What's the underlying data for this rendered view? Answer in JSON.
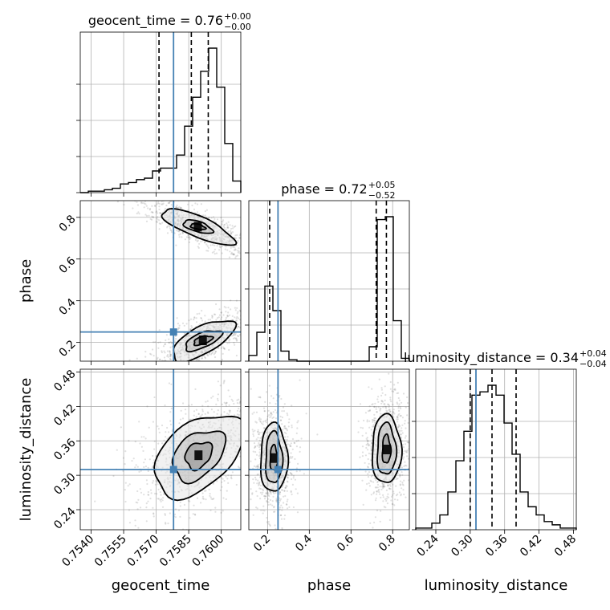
{
  "chart_data": {
    "type": "corner",
    "parameters": [
      "geocent_time",
      "phase",
      "luminosity_distance"
    ],
    "truth_color": "#4682b4",
    "truths": {
      "geocent_time": 0.7578,
      "phase": 0.25,
      "luminosity_distance": 0.31
    },
    "axes": {
      "geocent_time": {
        "range": [
          0.7535,
          0.7609
        ],
        "ticks": [
          "0.7540",
          "0.7555",
          "0.7570",
          "0.7585",
          "0.7600"
        ]
      },
      "phase": {
        "range": [
          0.11,
          0.88
        ],
        "ticks": [
          "0.2",
          "0.4",
          "0.6",
          "0.8"
        ]
      },
      "luminosity_distance": {
        "range": [
          0.205,
          0.485
        ],
        "ticks": [
          "0.24",
          "0.30",
          "0.36",
          "0.42",
          "0.48"
        ]
      }
    },
    "titles": [
      {
        "param": "geocent_time",
        "lhs": "geocent_time = 0.76",
        "plus": "+0.00",
        "minus": "−0.00"
      },
      {
        "param": "phase",
        "lhs": "phase = 0.72",
        "plus": "+0.05",
        "minus": "−0.52"
      },
      {
        "param": "luminosity_distance",
        "lhs": "luminosity_distance = 0.34",
        "plus": "+0.04",
        "minus": "−0.04"
      }
    ],
    "histograms": [
      {
        "param": "geocent_time",
        "edges_start": 0.7535,
        "bin_width": 0.00037,
        "counts": [
          0,
          1,
          1,
          2,
          3,
          6,
          7,
          9,
          10,
          15,
          17,
          17,
          26,
          46,
          66,
          84,
          100,
          73,
          34,
          8
        ],
        "quantiles": [
          0.75713,
          0.75862,
          0.7594
        ]
      },
      {
        "param": "phase",
        "edges_start": 0.11,
        "bin_width": 0.0385,
        "counts": [
          4,
          20,
          52,
          35,
          7,
          1,
          0,
          0,
          0,
          0,
          0,
          0,
          0,
          0,
          0,
          10,
          98,
          100,
          28,
          2
        ],
        "quantiles": [
          0.21,
          0.721,
          0.77
        ]
      },
      {
        "param": "luminosity_distance",
        "edges_start": 0.205,
        "bin_width": 0.014,
        "counts": [
          1,
          1,
          4,
          9,
          23,
          42,
          60,
          82,
          84,
          88,
          82,
          65,
          46,
          23,
          14,
          9,
          5,
          3,
          1,
          1
        ],
        "quantiles": [
          0.3,
          0.338,
          0.38
        ]
      }
    ],
    "pairs": [
      {
        "x": "geocent_time",
        "y": "phase",
        "clusters": [
          {
            "center": [
              0.75892,
              0.755
            ],
            "levels": [
              [
                0.0018,
                0.05,
                -0.4
              ],
              [
                0.0007,
                0.025,
                -0.3
              ],
              [
                0.00035,
                0.012,
                -0.2
              ]
            ]
          },
          {
            "center": [
              0.75915,
              0.21
            ],
            "levels": [
              [
                0.0016,
                0.065,
                0.5
              ],
              [
                0.0009,
                0.035,
                0.4
              ],
              [
                0.00045,
                0.018,
                0.3
              ]
            ]
          }
        ]
      },
      {
        "x": "geocent_time",
        "y": "luminosity_distance",
        "clusters": [
          {
            "center": [
              0.75895,
              0.335
            ],
            "levels": [
              [
                0.0024,
                0.055,
                0.7
              ],
              [
                0.0014,
                0.035,
                0.75
              ],
              [
                0.0007,
                0.02,
                0.8
              ]
            ]
          }
        ]
      },
      {
        "x": "phase",
        "y": "luminosity_distance",
        "clusters": [
          {
            "center": [
              0.23,
              0.33
            ],
            "levels": [
              [
                0.065,
                0.06,
                0
              ],
              [
                0.04,
                0.045,
                0
              ],
              [
                0.018,
                0.022,
                0
              ]
            ]
          },
          {
            "center": [
              0.77,
              0.345
            ],
            "levels": [
              [
                0.07,
                0.06,
                0
              ],
              [
                0.045,
                0.045,
                0
              ],
              [
                0.02,
                0.025,
                0
              ]
            ]
          }
        ]
      }
    ],
    "grid": true
  }
}
